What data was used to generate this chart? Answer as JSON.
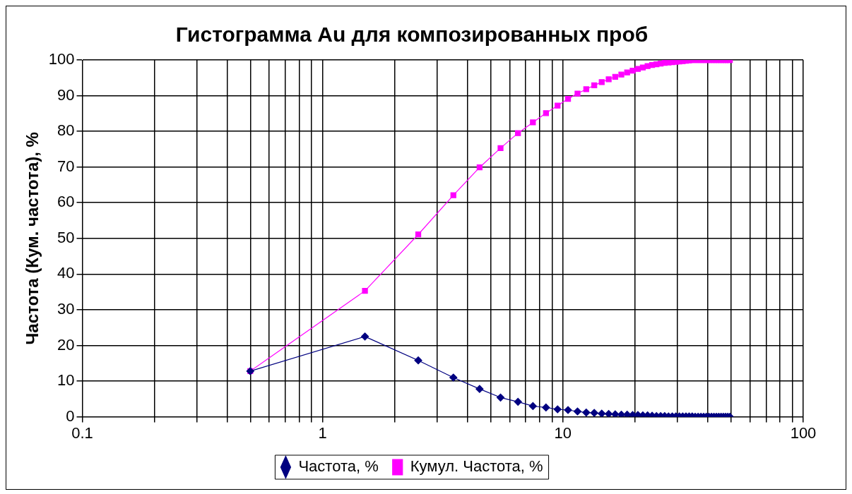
{
  "chart_data": {
    "type": "line",
    "title": "Гистограмма Au для композированных проб",
    "ylabel": "Частота (Кум. частота), %",
    "x": [
      0.5,
      1.5,
      2.5,
      3.5,
      4.5,
      5.5,
      6.5,
      7.5,
      8.5,
      9.5,
      10.5,
      11.5,
      12.5,
      13.5,
      14.5,
      15.5,
      16.5,
      17.5,
      18.5,
      19.5,
      20.5,
      21.5,
      22.5,
      23.5,
      24.5,
      25.5,
      26.5,
      27.5,
      28.5,
      29.5,
      30.5,
      31.5,
      32.5,
      33.5,
      34.5,
      35.5,
      36.5,
      37.5,
      38.5,
      39.5,
      40.5,
      41.5,
      42.5,
      43.5,
      44.5,
      45.5,
      46.5,
      47.5,
      48.5,
      49.5
    ],
    "series": [
      {
        "name": "Частота, %",
        "color": "#000080",
        "marker": "diamond",
        "values": [
          12.8,
          22.5,
          15.8,
          11.0,
          7.8,
          5.4,
          4.2,
          3.0,
          2.6,
          2.1,
          1.9,
          1.5,
          1.2,
          1.1,
          0.9,
          0.8,
          0.7,
          0.6,
          0.6,
          0.5,
          0.5,
          0.4,
          0.4,
          0.3,
          0.2,
          0.2,
          0.2,
          0.1,
          0.1,
          0.1,
          0.1,
          0.1,
          0.1,
          0.1,
          0.1,
          0,
          0,
          0,
          0,
          0,
          0,
          0,
          0,
          0,
          0,
          0,
          0,
          0,
          0,
          0
        ]
      },
      {
        "name": "Кумул. Частота, %",
        "color": "#ff00ff",
        "marker": "square",
        "values": [
          12.8,
          35.3,
          51.1,
          62.1,
          69.9,
          75.3,
          79.5,
          82.5,
          85.1,
          87.2,
          89.1,
          90.6,
          91.8,
          92.9,
          93.8,
          94.6,
          95.3,
          95.9,
          96.5,
          97.0,
          97.5,
          97.9,
          98.3,
          98.6,
          98.8,
          99.0,
          99.2,
          99.3,
          99.4,
          99.5,
          99.6,
          99.7,
          99.8,
          99.9,
          100,
          100,
          100,
          100,
          100,
          100,
          100,
          100,
          100,
          100,
          100,
          100,
          100,
          100,
          100,
          100
        ]
      }
    ],
    "log": "x",
    "xlim": [
      0.1,
      100
    ],
    "xticks": [
      0.1,
      {
        "value": 0.2,
        "label": null
      },
      {
        "value": 0.3,
        "label": null
      },
      {
        "value": 0.4,
        "label": null
      },
      {
        "value": 0.5,
        "label": null
      },
      {
        "value": 0.6,
        "label": null
      },
      {
        "value": 0.7,
        "label": null
      },
      {
        "value": 0.8,
        "label": null
      },
      {
        "value": 0.9,
        "label": null
      },
      1,
      {
        "value": 2,
        "label": null
      },
      {
        "value": 3,
        "label": null
      },
      {
        "value": 4,
        "label": null
      },
      {
        "value": 5,
        "label": null
      },
      {
        "value": 6,
        "label": null
      },
      {
        "value": 7,
        "label": null
      },
      {
        "value": 8,
        "label": null
      },
      {
        "value": 9,
        "label": null
      },
      10,
      {
        "value": 20,
        "label": null
      },
      {
        "value": 30,
        "label": null
      },
      {
        "value": 40,
        "label": null
      },
      {
        "value": 50,
        "label": null
      },
      {
        "value": 60,
        "label": null
      },
      {
        "value": 70,
        "label": null
      },
      {
        "value": 80,
        "label": null
      },
      {
        "value": 90,
        "label": null
      },
      100
    ],
    "ylim": [
      0,
      100
    ],
    "yticks": [
      0,
      10,
      20,
      30,
      40,
      50,
      60,
      70,
      80,
      90,
      100
    ],
    "grid": true,
    "legend": "bottom",
    "line_style": "solid"
  }
}
